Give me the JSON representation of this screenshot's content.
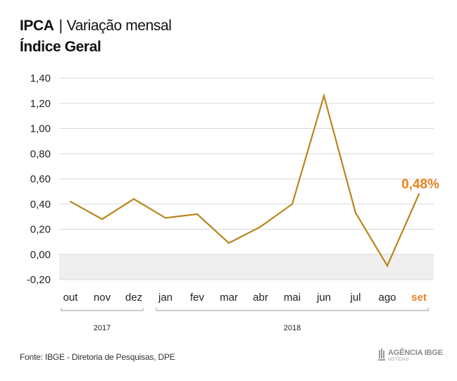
{
  "header": {
    "title_main": "IPCA",
    "title_sep": "|",
    "title_rest": "Variação mensal",
    "subtitle": "Índice Geral"
  },
  "chart_data": {
    "type": "line",
    "title": "IPCA | Variação mensal",
    "subtitle": "Índice Geral",
    "categories": [
      "out",
      "nov",
      "dez",
      "jan",
      "fev",
      "mar",
      "abr",
      "mai",
      "jun",
      "jul",
      "ago",
      "set"
    ],
    "years": [
      {
        "label": "2017",
        "from": 0,
        "to": 2
      },
      {
        "label": "2018",
        "from": 3,
        "to": 11
      }
    ],
    "series": [
      {
        "values": [
          0.42,
          0.28,
          0.44,
          0.29,
          0.32,
          0.09,
          0.22,
          0.4,
          1.26,
          0.33,
          -0.09,
          0.48
        ]
      }
    ],
    "y_ticks": [
      "1,40",
      "1,20",
      "1,00",
      "0,80",
      "0,60",
      "0,40",
      "0,20",
      "0,00",
      "-0,20"
    ],
    "ylim": [
      -0.2,
      1.4
    ],
    "grid": true,
    "highlight": {
      "index": 11,
      "label": "0,48%"
    },
    "colors": {
      "line": "#B8861B",
      "highlight": "#E8821E",
      "grid": "#D9D9D9",
      "negative_band": "#EFEFEF",
      "text": "#222222"
    }
  },
  "footer": {
    "source": "Fonte: IBGE - Diretoria de Pesquisas, DPE",
    "logo_name": "AGÊNCIA IBGE",
    "logo_sub": "NOTÍCIAS",
    "logo_icon": "ibge-logo-icon"
  }
}
